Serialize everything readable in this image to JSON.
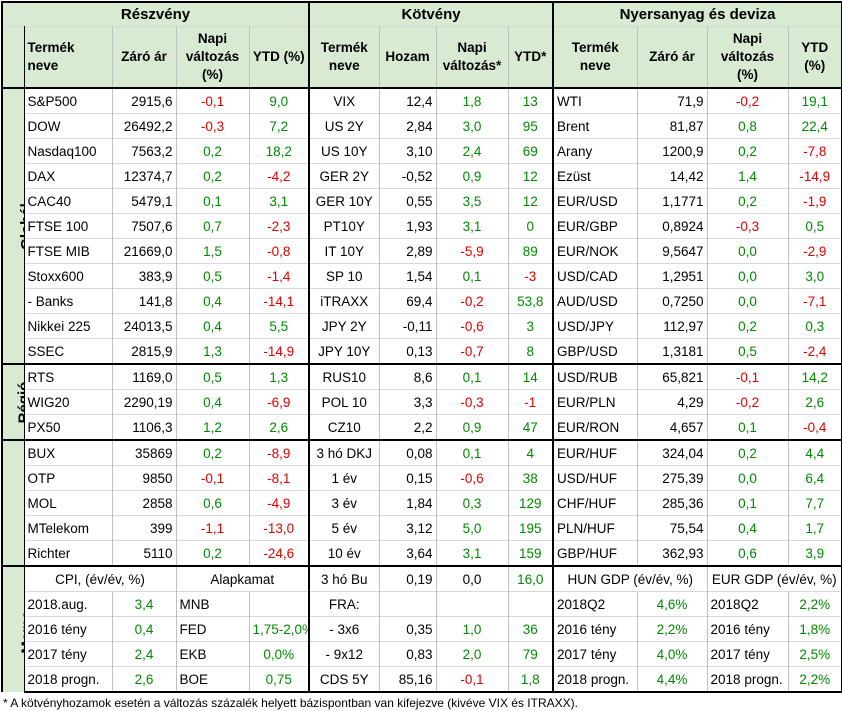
{
  "sections": {
    "stocks": "Részvény",
    "bonds": "Kötvény",
    "commodities": "Nyersanyag és deviza"
  },
  "headers": {
    "product": "Termék neve",
    "close": "Záró ár",
    "daily_pct": "Napi változás (%)",
    "ytd_pct": "YTD (%)",
    "yield": "Hozam",
    "daily_bond": "Napi változás*",
    "ytd_bond": "YTD*"
  },
  "groups": {
    "global": "Globál",
    "region": "Régió",
    "hu": "Magyar",
    "memo": "Memo:"
  },
  "rows": [
    {
      "s": [
        "S&P500",
        "2915,6",
        "-0,1",
        "9,0"
      ],
      "b": [
        "VIX",
        "12,4",
        "1,8",
        "13"
      ],
      "c": [
        "WTI",
        "71,9",
        "-0,2",
        "19,1"
      ]
    },
    {
      "s": [
        "DOW",
        "26492,2",
        "-0,3",
        "7,2"
      ],
      "b": [
        "US 2Y",
        "2,84",
        "3,0",
        "95"
      ],
      "c": [
        "Brent",
        "81,87",
        "0,8",
        "22,4"
      ]
    },
    {
      "s": [
        "Nasdaq100",
        "7563,2",
        "0,2",
        "18,2"
      ],
      "b": [
        "US 10Y",
        "3,10",
        "2,4",
        "69"
      ],
      "c": [
        "Arany",
        "1200,9",
        "0,2",
        "-7,8"
      ]
    },
    {
      "s": [
        "DAX",
        "12374,7",
        "0,2",
        "-4,2"
      ],
      "b": [
        "GER 2Y",
        "-0,52",
        "0,9",
        "12"
      ],
      "c": [
        "Ezüst",
        "14,42",
        "1,4",
        "-14,9"
      ]
    },
    {
      "s": [
        "CAC40",
        "5479,1",
        "0,1",
        "3,1"
      ],
      "b": [
        "GER 10Y",
        "0,55",
        "3,5",
        "12"
      ],
      "c": [
        "EUR/USD",
        "1,1771",
        "0,2",
        "-1,9"
      ]
    },
    {
      "s": [
        "FTSE 100",
        "7507,6",
        "0,7",
        "-2,3"
      ],
      "b": [
        "PT10Y",
        "1,93",
        "3,1",
        "0"
      ],
      "c": [
        "EUR/GBP",
        "0,8924",
        "-0,3",
        "0,5"
      ]
    },
    {
      "s": [
        "FTSE MIB",
        "21669,0",
        "1,5",
        "-0,8"
      ],
      "b": [
        "IT 10Y",
        "2,89",
        "-5,9",
        "89"
      ],
      "c": [
        "EUR/NOK",
        "9,5647",
        "0,0",
        "-2,9"
      ]
    },
    {
      "s": [
        "Stoxx600",
        "383,9",
        "0,5",
        "-1,4"
      ],
      "b": [
        "SP 10",
        "1,54",
        "0,1",
        "-3"
      ],
      "c": [
        "USD/CAD",
        "1,2951",
        "0,0",
        "3,0"
      ]
    },
    {
      "s": [
        " - Banks",
        "141,8",
        "0,4",
        "-14,1"
      ],
      "b": [
        "iTRAXX",
        "69,4",
        "-0,2",
        "53,8"
      ],
      "c": [
        "AUD/USD",
        "0,7250",
        "0,0",
        "-7,1"
      ]
    },
    {
      "s": [
        "Nikkei 225",
        "24013,5",
        "0,4",
        "5,5"
      ],
      "b": [
        "JPY 2Y",
        "-0,11",
        "-0,6",
        "3"
      ],
      "c": [
        "USD/JPY",
        "112,97",
        "0,2",
        "0,3"
      ]
    },
    {
      "s": [
        "SSEC",
        "2815,9",
        "1,3",
        "-14,9"
      ],
      "b": [
        "JPY 10Y",
        "0,13",
        "-0,7",
        "8"
      ],
      "c": [
        "GBP/USD",
        "1,3181",
        "0,5",
        "-2,4"
      ]
    },
    {
      "s": [
        "RTS",
        "1169,0",
        "0,5",
        "1,3"
      ],
      "b": [
        "RUS10",
        "8,6",
        "0,1",
        "14"
      ],
      "c": [
        "USD/RUB",
        "65,821",
        "-0,1",
        "14,2"
      ]
    },
    {
      "s": [
        "WIG20",
        "2290,19",
        "0,4",
        "-6,9"
      ],
      "b": [
        "POL 10",
        "3,3",
        "-0,3",
        "-1"
      ],
      "c": [
        "EUR/PLN",
        "4,29",
        "-0,2",
        "2,6"
      ]
    },
    {
      "s": [
        "PX50",
        "1106,3",
        "1,2",
        "2,6"
      ],
      "b": [
        "CZ10",
        "2,2",
        "0,9",
        "47"
      ],
      "c": [
        "EUR/RON",
        "4,657",
        "0,1",
        "-0,4"
      ]
    },
    {
      "s": [
        "BUX",
        "35869",
        "0,2",
        "-8,9"
      ],
      "b": [
        "3 hó DKJ",
        "0,08",
        "0,1",
        "4"
      ],
      "c": [
        "EUR/HUF",
        "324,04",
        "0,2",
        "4,4"
      ]
    },
    {
      "s": [
        "OTP",
        "9850",
        "-0,1",
        "-8,1"
      ],
      "b": [
        "1 év",
        "0,15",
        "-0,6",
        "38"
      ],
      "c": [
        "USD/HUF",
        "275,39",
        "0,0",
        "6,4"
      ]
    },
    {
      "s": [
        "MOL",
        "2858",
        "0,6",
        "-4,9"
      ],
      "b": [
        "3 év",
        "1,84",
        "0,3",
        "129"
      ],
      "c": [
        "CHF/HUF",
        "285,36",
        "0,1",
        "7,7"
      ]
    },
    {
      "s": [
        "MTelekom",
        "399",
        "-1,1",
        "-13,0"
      ],
      "b": [
        "5 év",
        "3,12",
        "5,0",
        "195"
      ],
      "c": [
        "PLN/HUF",
        "75,54",
        "0,4",
        "1,7"
      ]
    },
    {
      "s": [
        "Richter",
        "5110",
        "0,2",
        "-24,6"
      ],
      "b": [
        "10 év",
        "3,64",
        "3,1",
        "159"
      ],
      "c": [
        "GBP/HUF",
        "362,93",
        "0,6",
        "3,9"
      ]
    }
  ],
  "memo": {
    "cpi_header": "CPI, (év/év, %)",
    "base_rate_header": "Alapkamat",
    "hun_gdp_header": "HUN GDP (év/év, %)",
    "eur_gdp_header": "EUR GDP (év/év, %)",
    "bond_row": [
      "3 hó Bu",
      "0,19",
      "0,0",
      "16,0"
    ],
    "rows": [
      {
        "cpi": [
          "2018.aug.",
          "3,4"
        ],
        "rate": [
          "MNB",
          ""
        ],
        "bond": [
          "FRA:",
          "",
          "",
          ""
        ],
        "hun": [
          "2018Q2",
          "4,6%"
        ],
        "eur": [
          "2018Q2",
          "2,2%"
        ]
      },
      {
        "cpi": [
          "2016 tény",
          "0,4"
        ],
        "rate": [
          "FED",
          "1,75-2,0%"
        ],
        "bond": [
          "- 3x6",
          "0,35",
          "1,0",
          "36"
        ],
        "hun": [
          "2016 tény",
          "2,2%"
        ],
        "eur": [
          "2016 tény",
          "1,8%"
        ]
      },
      {
        "cpi": [
          "2017 tény",
          "2,4"
        ],
        "rate": [
          "EKB",
          "0,0%"
        ],
        "bond": [
          "- 9x12",
          "0,83",
          "2,0",
          "79"
        ],
        "hun": [
          "2017 tény",
          "4,0%"
        ],
        "eur": [
          "2017 tény",
          "2,5%"
        ]
      },
      {
        "cpi": [
          "2018 progn.",
          "2,6"
        ],
        "rate": [
          "BOE",
          "0,75"
        ],
        "bond": [
          "CDS 5Y",
          "85,16",
          "-0,1",
          "1,8"
        ],
        "hun": [
          "2018 progn.",
          "4,4%"
        ],
        "eur": [
          "2018 progn.",
          "2,2%"
        ]
      }
    ]
  },
  "footnote": "* A kötvényhozamok esetén a változás százalék helyett bázispontban van kifejezve (kivéve VIX és ITRAXX).",
  "colors": {
    "header_bg": "#d9ead3",
    "negative": "#e00000",
    "positive": "#008a00"
  }
}
